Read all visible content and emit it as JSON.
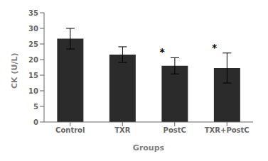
{
  "chart_data": {
    "type": "bar",
    "categories": [
      "Control",
      "TXR",
      "PostC",
      "TXR+PostC"
    ],
    "values": [
      26.7,
      21.6,
      18.0,
      17.3
    ],
    "errors": [
      3.3,
      2.5,
      2.6,
      4.8
    ],
    "color": "#2b2b2b",
    "xlabel": "Groups",
    "ylabel": "CK (U/L)",
    "ylim": [
      0,
      35
    ],
    "yticks": [
      0,
      5,
      10,
      15,
      20,
      25,
      30,
      35
    ],
    "grid": false,
    "annotations": [
      {
        "category": "PostC",
        "text": "*"
      },
      {
        "category": "TXR+PostC",
        "text": "*"
      }
    ]
  }
}
